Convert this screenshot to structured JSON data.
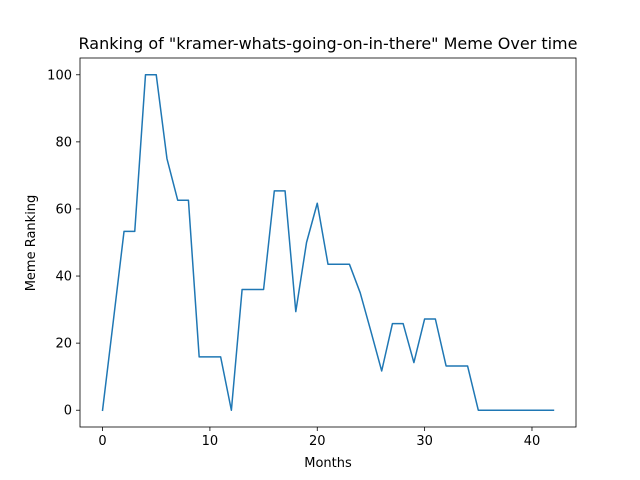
{
  "chart_data": {
    "type": "line",
    "title": "Ranking of \"kramer-whats-going-on-in-there\" Meme Over time",
    "xlabel": "Months",
    "ylabel": "Meme Ranking",
    "xlim": [
      -2.1,
      44.1
    ],
    "ylim": [
      -5,
      105
    ],
    "x_ticks": [
      0,
      10,
      20,
      30,
      40
    ],
    "y_ticks": [
      0,
      20,
      40,
      60,
      80,
      100
    ],
    "grid": false,
    "series": [
      {
        "color": "#1f77b4",
        "x": [
          0,
          1,
          2,
          3,
          4,
          5,
          6,
          7,
          8,
          9,
          10,
          11,
          12,
          13,
          14,
          15,
          16,
          17,
          18,
          19,
          20,
          21,
          22,
          23,
          24,
          25,
          26,
          27,
          28,
          29,
          30,
          31,
          32,
          33,
          34,
          35,
          36,
          37,
          38,
          39,
          40,
          41,
          42
        ],
        "y": [
          0,
          26.5,
          53.3,
          53.3,
          100,
          100,
          75,
          62.6,
          62.6,
          15.9,
          15.9,
          15.9,
          0,
          36,
          36,
          36,
          65.4,
          65.4,
          29.4,
          50,
          61.7,
          43.5,
          43.5,
          43.5,
          35,
          23.5,
          11.7,
          25.8,
          25.8,
          14.2,
          27.2,
          27.2,
          13.2,
          13.2,
          13.2,
          0,
          0,
          0,
          0,
          0,
          0,
          0,
          0
        ]
      }
    ]
  }
}
